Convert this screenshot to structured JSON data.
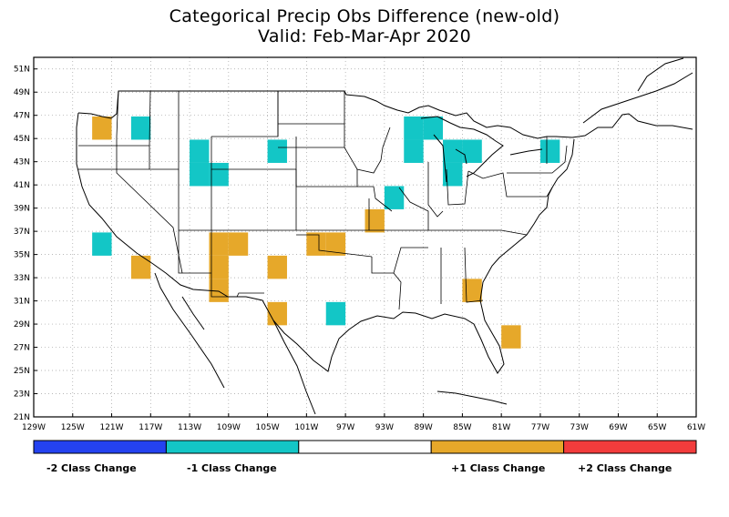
{
  "title_line1": "Categorical Precip Obs Difference (new-old)",
  "title_line2": "Valid: Feb-Mar-Apr 2020",
  "lon_ticks": [
    "129W",
    "125W",
    "121W",
    "117W",
    "113W",
    "109W",
    "105W",
    "101W",
    "97W",
    "93W",
    "89W",
    "85W",
    "81W",
    "77W",
    "73W",
    "69W",
    "65W",
    "61W"
  ],
  "lat_ticks": [
    "21N",
    "23N",
    "25N",
    "27N",
    "29N",
    "31N",
    "33N",
    "35N",
    "37N",
    "39N",
    "41N",
    "43N",
    "45N",
    "47N",
    "49N",
    "51N"
  ],
  "colors": {
    "minus2": "#2442f0",
    "minus1": "#13c6c6",
    "zero": "#ffffff",
    "plus1": "#e6a82a",
    "plus2": "#f23c3c",
    "grid": "#a0a0a0",
    "outline": "#000000"
  },
  "legend": {
    "minus2": "-2 Class Change",
    "minus1": "-1 Class Change",
    "plus1": "+1 Class Change",
    "plus2": "+2 Class Change"
  },
  "grid_cells": [
    {
      "lon": -122,
      "lat": 45.9,
      "class": 1
    },
    {
      "lon": -118,
      "lat": 45.9,
      "class": -1
    },
    {
      "lon": -112,
      "lat": 43.9,
      "class": -1
    },
    {
      "lon": -112,
      "lat": 41.9,
      "class": -1
    },
    {
      "lon": -110,
      "lat": 41.9,
      "class": -1
    },
    {
      "lon": -104,
      "lat": 43.9,
      "class": -1
    },
    {
      "lon": -122,
      "lat": 35.9,
      "class": -1
    },
    {
      "lon": -118,
      "lat": 33.9,
      "class": 1
    },
    {
      "lon": -110,
      "lat": 35.9,
      "class": 1
    },
    {
      "lon": -108,
      "lat": 35.9,
      "class": 1
    },
    {
      "lon": -110,
      "lat": 33.9,
      "class": 1
    },
    {
      "lon": -110,
      "lat": 31.9,
      "class": 1
    },
    {
      "lon": -104,
      "lat": 33.9,
      "class": 1
    },
    {
      "lon": -104,
      "lat": 29.9,
      "class": 1
    },
    {
      "lon": -100,
      "lat": 35.9,
      "class": 1
    },
    {
      "lon": -98,
      "lat": 35.9,
      "class": 1
    },
    {
      "lon": -98,
      "lat": 29.9,
      "class": -1
    },
    {
      "lon": -94,
      "lat": 37.9,
      "class": 1
    },
    {
      "lon": -92,
      "lat": 39.9,
      "class": -1
    },
    {
      "lon": -90,
      "lat": 45.9,
      "class": -1
    },
    {
      "lon": -88,
      "lat": 45.9,
      "class": -1
    },
    {
      "lon": -90,
      "lat": 43.9,
      "class": -1
    },
    {
      "lon": -86,
      "lat": 43.9,
      "class": -1
    },
    {
      "lon": -84,
      "lat": 43.9,
      "class": -1
    },
    {
      "lon": -86,
      "lat": 41.9,
      "class": -1
    },
    {
      "lon": -84,
      "lat": 31.9,
      "class": 1
    },
    {
      "lon": -80,
      "lat": 27.9,
      "class": 1
    },
    {
      "lon": -76,
      "lat": 43.9,
      "class": -1
    }
  ]
}
